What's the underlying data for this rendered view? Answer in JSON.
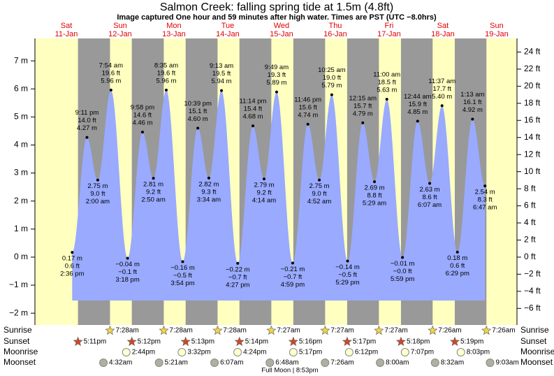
{
  "chart_data": {
    "type": "tide",
    "title": "Salmon Creek: falling  spring tide at 1.5m (4.8ft)",
    "subtitle": "Image captured One hour and 59 minutes after high water. Times are PST (UTC −8.0hrs)",
    "ylim": [
      -2.42,
      7.8
    ],
    "yticks": [
      {
        "value": -2,
        "label": "−2 m"
      },
      {
        "value": -1,
        "label": "−1 m"
      },
      {
        "value": 0,
        "label": "0 m"
      },
      {
        "value": 1,
        "label": "1 m"
      },
      {
        "value": 2,
        "label": "2 m"
      },
      {
        "value": 3,
        "label": "3 m"
      },
      {
        "value": 4,
        "label": "4 m"
      },
      {
        "value": 5,
        "label": "5 m"
      },
      {
        "value": 6,
        "label": "6 m"
      },
      {
        "value": 7,
        "label": "7 m"
      }
    ],
    "y2lim": [
      -7.94,
      25.59
    ],
    "y2ticks": [
      {
        "value": -6,
        "label": "−6 ft"
      },
      {
        "value": -4,
        "label": "−4 ft"
      },
      {
        "value": -2,
        "label": "−2 ft"
      },
      {
        "value": 0,
        "label": "0 ft"
      },
      {
        "value": 2,
        "label": "2 ft"
      },
      {
        "value": 4,
        "label": "4 ft"
      },
      {
        "value": 6,
        "label": "6 ft"
      },
      {
        "value": 8,
        "label": "8 ft"
      },
      {
        "value": 10,
        "label": "10 ft"
      },
      {
        "value": 12,
        "label": "12 ft"
      },
      {
        "value": 14,
        "label": "14 ft"
      },
      {
        "value": 16,
        "label": "16 ft"
      },
      {
        "value": 18,
        "label": "18 ft"
      },
      {
        "value": 20,
        "label": "20 ft"
      },
      {
        "value": 22,
        "label": "22 ft"
      },
      {
        "value": 24,
        "label": "24 ft"
      }
    ],
    "row_labels": [
      "Sunrise",
      "Sunset",
      "Moonrise",
      "Moonset"
    ],
    "full_moon": "Full Moon | 8:53pm",
    "days": [
      {
        "weekday": "Sat",
        "date": "11-Jan",
        "sunset": "5:11pm",
        "tides": [
          {
            "m": 0.17,
            "m_label": "0.17 m",
            "ft_label": "0.6 ft",
            "time": "2:36 pm"
          },
          {
            "m": 4.27,
            "m_label": "4.27 m",
            "ft_label": "14.0 ft",
            "time": "9:11 pm"
          }
        ]
      },
      {
        "weekday": "Sun",
        "date": "12-Jan",
        "sunrise": "7:28am",
        "sunset": "5:12pm",
        "moonrise": "2:44pm",
        "moonset": "4:32am",
        "tides": [
          {
            "m": 2.75,
            "m_label": "2.75 m",
            "ft_label": "9.0 ft",
            "time": "2:00 am"
          },
          {
            "m": 5.96,
            "m_label": "5.96 m",
            "ft_label": "19.6 ft",
            "time": "7:54 am"
          },
          {
            "m": -0.04,
            "m_label": "−0.04 m",
            "ft_label": "−0.1 ft",
            "time": "3:18 pm"
          },
          {
            "m": 4.46,
            "m_label": "4.46 m",
            "ft_label": "14.6 ft",
            "time": "9:58 pm"
          }
        ]
      },
      {
        "weekday": "Mon",
        "date": "13-Jan",
        "sunrise": "7:28am",
        "sunset": "5:13pm",
        "moonrise": "3:32pm",
        "moonset": "5:21am",
        "tides": [
          {
            "m": 2.81,
            "m_label": "2.81 m",
            "ft_label": "9.2 ft",
            "time": "2:50 am"
          },
          {
            "m": 5.96,
            "m_label": "5.96 m",
            "ft_label": "19.6 ft",
            "time": "8:35 am"
          },
          {
            "m": -0.16,
            "m_label": "−0.16 m",
            "ft_label": "−0.5 ft",
            "time": "3:54 pm"
          },
          {
            "m": 4.6,
            "m_label": "4.60 m",
            "ft_label": "15.1 ft",
            "time": "10:39 pm"
          }
        ]
      },
      {
        "weekday": "Tue",
        "date": "14-Jan",
        "sunrise": "7:28am",
        "sunset": "5:14pm",
        "moonrise": "4:24pm",
        "moonset": "6:07am",
        "tides": [
          {
            "m": 2.82,
            "m_label": "2.82 m",
            "ft_label": "9.3 ft",
            "time": "3:34 am"
          },
          {
            "m": 5.94,
            "m_label": "5.94 m",
            "ft_label": "19.5 ft",
            "time": "9:13 am"
          },
          {
            "m": -0.22,
            "m_label": "−0.22 m",
            "ft_label": "−0.7 ft",
            "time": "4:27 pm"
          },
          {
            "m": 4.68,
            "m_label": "4.68 m",
            "ft_label": "15.4 ft",
            "time": "11:14 pm"
          }
        ]
      },
      {
        "weekday": "Wed",
        "date": "15-Jan",
        "sunrise": "7:27am",
        "sunset": "5:16pm",
        "moonrise": "5:17pm",
        "moonset": "6:48am",
        "tides": [
          {
            "m": 2.79,
            "m_label": "2.79 m",
            "ft_label": "9.2 ft",
            "time": "4:14 am"
          },
          {
            "m": 5.89,
            "m_label": "5.89 m",
            "ft_label": "19.3 ft",
            "time": "9:49 am"
          },
          {
            "m": -0.21,
            "m_label": "−0.21 m",
            "ft_label": "−0.7 ft",
            "time": "4:59 pm"
          },
          {
            "m": 4.74,
            "m_label": "4.74 m",
            "ft_label": "15.6 ft",
            "time": "11:46 pm"
          }
        ]
      },
      {
        "weekday": "Thu",
        "date": "16-Jan",
        "sunrise": "7:27am",
        "sunset": "5:17pm",
        "moonrise": "6:12pm",
        "moonset": "7:26am",
        "tides": [
          {
            "m": 2.75,
            "m_label": "2.75 m",
            "ft_label": "9.0 ft",
            "time": "4:52 am"
          },
          {
            "m": 5.79,
            "m_label": "5.79 m",
            "ft_label": "19.0 ft",
            "time": "10:25 am"
          },
          {
            "m": -0.14,
            "m_label": "−0.14 m",
            "ft_label": "−0.5 ft",
            "time": "5:29 pm"
          }
        ]
      },
      {
        "weekday": "Fri",
        "date": "17-Jan",
        "sunrise": "7:27am",
        "sunset": "5:18pm",
        "moonrise": "7:07pm",
        "moonset": "8:00am",
        "tides": [
          {
            "m": 4.79,
            "m_label": "4.79 m",
            "ft_label": "15.7 ft",
            "time": "12:15 am"
          },
          {
            "m": 2.69,
            "m_label": "2.69 m",
            "ft_label": "8.8 ft",
            "time": "5:29 am"
          },
          {
            "m": 5.63,
            "m_label": "5.63 m",
            "ft_label": "18.5 ft",
            "time": "11:00 am"
          },
          {
            "m": -0.01,
            "m_label": "−0.01 m",
            "ft_label": "−0.0 ft",
            "time": "5:59 pm"
          }
        ]
      },
      {
        "weekday": "Sat",
        "date": "18-Jan",
        "sunrise": "7:26am",
        "sunset": "5:19pm",
        "moonrise": "8:03pm",
        "moonset": "8:32am",
        "tides": [
          {
            "m": 4.85,
            "m_label": "4.85 m",
            "ft_label": "15.9 ft",
            "time": "12:44 am"
          },
          {
            "m": 2.63,
            "m_label": "2.63 m",
            "ft_label": "8.6 ft",
            "time": "6:07 am"
          },
          {
            "m": 5.4,
            "m_label": "5.40 m",
            "ft_label": "17.7 ft",
            "time": "11:37 am"
          },
          {
            "m": 0.18,
            "m_label": "0.18 m",
            "ft_label": "0.6 ft",
            "time": "6:29 pm"
          }
        ]
      },
      {
        "weekday": "Sun",
        "date": "19-Jan",
        "sunrise": "7:26am",
        "moonset": "9:03am",
        "tides": [
          {
            "m": 4.92,
            "m_label": "4.92 m",
            "ft_label": "16.1 ft",
            "time": "1:13 am"
          },
          {
            "m": 2.54,
            "m_label": "2.54 m",
            "ft_label": "8.3 ft",
            "time": "6:47 am"
          }
        ]
      }
    ]
  }
}
